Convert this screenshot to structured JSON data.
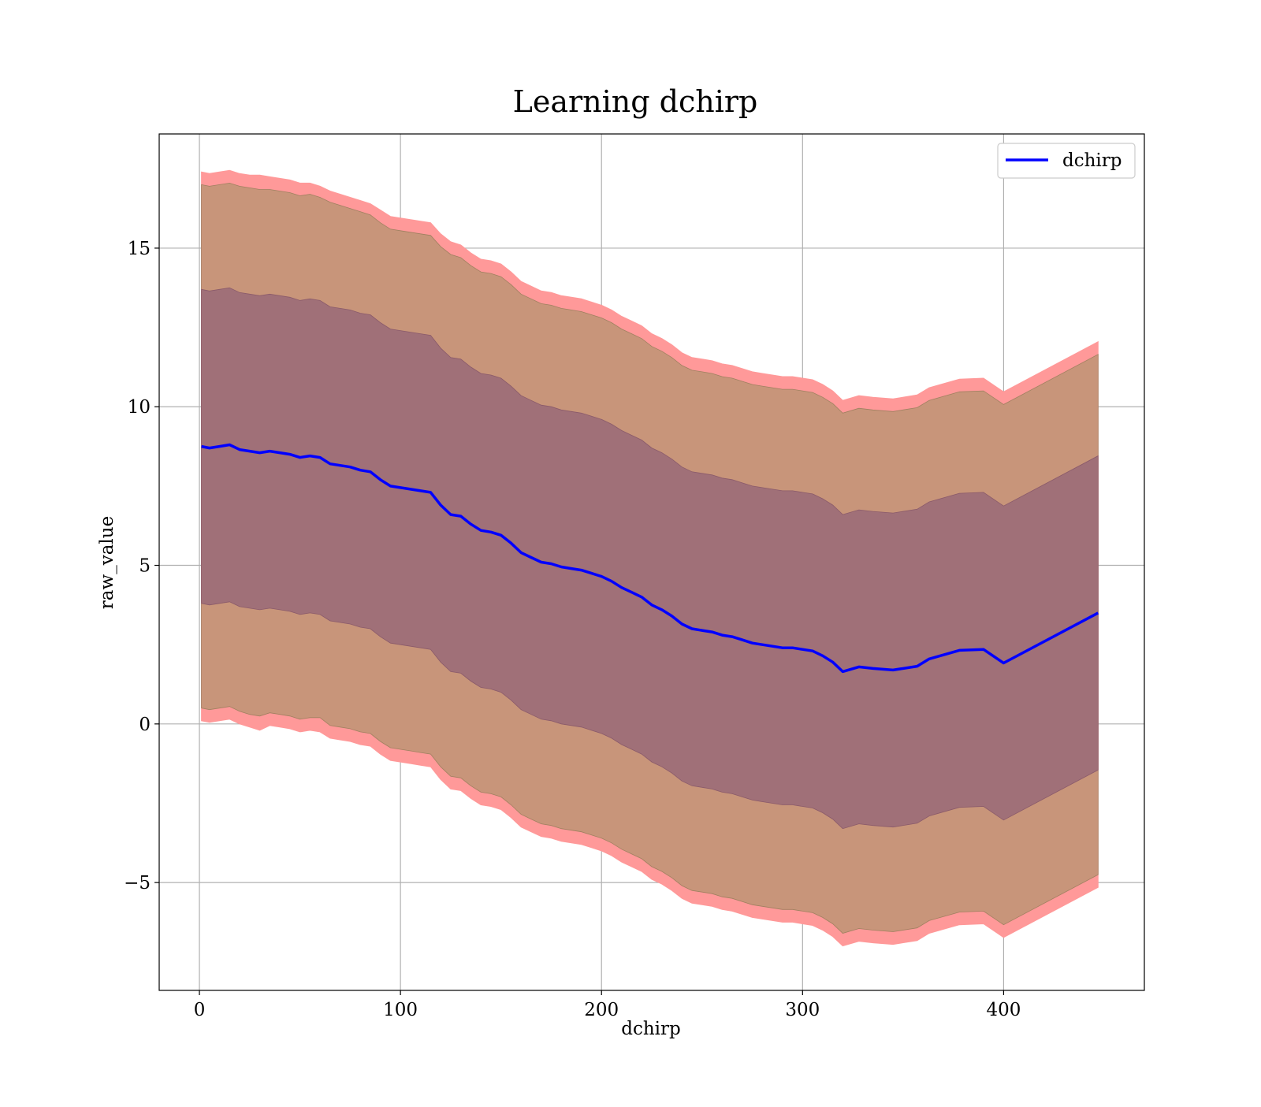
{
  "chart_data": {
    "type": "line",
    "title": "Learning dchirp",
    "xlabel": "dchirp",
    "ylabel": "raw_value",
    "xlim": [
      -20,
      470
    ],
    "ylim": [
      -8.4,
      18.6
    ],
    "xticks": [
      0,
      100,
      200,
      300,
      400
    ],
    "yticks": [
      -5,
      0,
      5,
      10,
      15
    ],
    "xtick_labels": [
      "0",
      "100",
      "200",
      "300",
      "400"
    ],
    "ytick_labels": [
      "−5",
      "0",
      "5",
      "10",
      "15"
    ],
    "grid": true,
    "legend": {
      "placement": "top-right",
      "entries": [
        "dchirp"
      ]
    },
    "colors": {
      "line": "#0000ff",
      "outer_band": "#ff9999",
      "middle_band": "#c8957a",
      "inner_band": "#a07078"
    },
    "series": [
      {
        "name": "dchirp",
        "x": [
          1,
          5,
          10,
          15,
          20,
          25,
          30,
          35,
          40,
          45,
          50,
          55,
          60,
          65,
          70,
          75,
          80,
          85,
          90,
          95,
          100,
          105,
          110,
          115,
          120,
          125,
          130,
          135,
          140,
          145,
          150,
          155,
          160,
          165,
          170,
          175,
          180,
          185,
          190,
          195,
          200,
          205,
          210,
          215,
          220,
          225,
          230,
          235,
          240,
          245,
          250,
          255,
          260,
          265,
          270,
          275,
          280,
          285,
          290,
          295,
          300,
          305,
          310,
          315,
          320,
          328,
          335,
          345,
          357,
          363,
          378,
          390,
          400,
          447
        ],
        "y": [
          8.75,
          8.7,
          8.75,
          8.8,
          8.65,
          8.6,
          8.55,
          8.6,
          8.55,
          8.5,
          8.4,
          8.45,
          8.4,
          8.2,
          8.15,
          8.1,
          8.0,
          7.95,
          7.7,
          7.5,
          7.45,
          7.4,
          7.35,
          7.3,
          6.9,
          6.6,
          6.55,
          6.3,
          6.1,
          6.05,
          5.95,
          5.7,
          5.4,
          5.25,
          5.1,
          5.05,
          4.95,
          4.9,
          4.85,
          4.75,
          4.65,
          4.5,
          4.3,
          4.15,
          4.0,
          3.75,
          3.6,
          3.4,
          3.15,
          3.0,
          2.95,
          2.9,
          2.8,
          2.75,
          2.65,
          2.55,
          2.5,
          2.45,
          2.4,
          2.4,
          2.35,
          2.3,
          2.15,
          1.95,
          1.65,
          1.8,
          1.75,
          1.7,
          1.82,
          2.05,
          2.32,
          2.35,
          1.92,
          3.5
        ],
        "outer_upper": [
          17.4,
          17.35,
          17.4,
          17.45,
          17.35,
          17.3,
          17.3,
          17.25,
          17.2,
          17.15,
          17.05,
          17.05,
          16.95,
          16.8,
          16.7,
          16.6,
          16.5,
          16.4,
          16.2,
          16.0,
          15.95,
          15.9,
          15.85,
          15.8,
          15.45,
          15.2,
          15.1,
          14.85,
          14.65,
          14.6,
          14.5,
          14.25,
          13.95,
          13.8,
          13.65,
          13.6,
          13.5,
          13.45,
          13.4,
          13.3,
          13.2,
          13.05,
          12.85,
          12.7,
          12.55,
          12.3,
          12.15,
          11.95,
          11.7,
          11.55,
          11.5,
          11.45,
          11.35,
          11.3,
          11.2,
          11.1,
          11.05,
          11.0,
          10.95,
          10.95,
          10.9,
          10.85,
          10.7,
          10.5,
          10.2,
          10.35,
          10.3,
          10.25,
          10.37,
          10.6,
          10.87,
          10.9,
          10.47,
          12.05
        ],
        "outer_lower": [
          0.1,
          0.05,
          0.1,
          0.15,
          0.0,
          -0.1,
          -0.2,
          -0.05,
          -0.1,
          -0.15,
          -0.25,
          -0.2,
          -0.25,
          -0.45,
          -0.5,
          -0.55,
          -0.65,
          -0.7,
          -0.95,
          -1.15,
          -1.2,
          -1.25,
          -1.3,
          -1.35,
          -1.75,
          -2.05,
          -2.1,
          -2.35,
          -2.55,
          -2.6,
          -2.7,
          -2.95,
          -3.25,
          -3.4,
          -3.55,
          -3.6,
          -3.7,
          -3.75,
          -3.8,
          -3.9,
          -4.0,
          -4.15,
          -4.35,
          -4.5,
          -4.65,
          -4.9,
          -5.05,
          -5.25,
          -5.5,
          -5.65,
          -5.7,
          -5.75,
          -5.85,
          -5.9,
          -6.0,
          -6.1,
          -6.15,
          -6.2,
          -6.25,
          -6.25,
          -6.3,
          -6.35,
          -6.5,
          -6.7,
          -7.0,
          -6.85,
          -6.9,
          -6.95,
          -6.83,
          -6.6,
          -6.33,
          -6.3,
          -6.73,
          -5.15
        ],
        "middle_upper": [
          17.0,
          16.95,
          17.0,
          17.05,
          16.95,
          16.9,
          16.85,
          16.85,
          16.8,
          16.75,
          16.65,
          16.7,
          16.6,
          16.45,
          16.35,
          16.25,
          16.15,
          16.05,
          15.8,
          15.6,
          15.55,
          15.5,
          15.45,
          15.4,
          15.05,
          14.8,
          14.7,
          14.45,
          14.25,
          14.2,
          14.1,
          13.85,
          13.55,
          13.4,
          13.25,
          13.2,
          13.1,
          13.05,
          13.0,
          12.9,
          12.8,
          12.65,
          12.45,
          12.3,
          12.15,
          11.9,
          11.75,
          11.55,
          11.3,
          11.15,
          11.1,
          11.05,
          10.95,
          10.9,
          10.8,
          10.7,
          10.65,
          10.6,
          10.55,
          10.55,
          10.5,
          10.45,
          10.3,
          10.1,
          9.8,
          9.95,
          9.9,
          9.85,
          9.97,
          10.2,
          10.47,
          10.5,
          10.07,
          11.65
        ],
        "middle_lower": [
          0.5,
          0.45,
          0.5,
          0.55,
          0.4,
          0.3,
          0.25,
          0.35,
          0.3,
          0.25,
          0.15,
          0.2,
          0.2,
          -0.05,
          -0.1,
          -0.15,
          -0.25,
          -0.3,
          -0.55,
          -0.75,
          -0.8,
          -0.85,
          -0.9,
          -0.95,
          -1.35,
          -1.65,
          -1.7,
          -1.95,
          -2.15,
          -2.2,
          -2.3,
          -2.55,
          -2.85,
          -3.0,
          -3.15,
          -3.2,
          -3.3,
          -3.35,
          -3.4,
          -3.5,
          -3.6,
          -3.75,
          -3.95,
          -4.1,
          -4.25,
          -4.5,
          -4.65,
          -4.85,
          -5.1,
          -5.25,
          -5.3,
          -5.35,
          -5.45,
          -5.5,
          -5.6,
          -5.7,
          -5.75,
          -5.8,
          -5.85,
          -5.85,
          -5.9,
          -5.95,
          -6.1,
          -6.3,
          -6.6,
          -6.45,
          -6.5,
          -6.55,
          -6.43,
          -6.2,
          -5.93,
          -5.9,
          -6.33,
          -4.75
        ],
        "inner_upper": [
          13.7,
          13.65,
          13.7,
          13.75,
          13.6,
          13.55,
          13.5,
          13.55,
          13.5,
          13.45,
          13.35,
          13.4,
          13.35,
          13.15,
          13.1,
          13.05,
          12.95,
          12.9,
          12.65,
          12.45,
          12.4,
          12.35,
          12.3,
          12.25,
          11.85,
          11.55,
          11.5,
          11.25,
          11.05,
          11.0,
          10.9,
          10.65,
          10.35,
          10.2,
          10.05,
          10.0,
          9.9,
          9.85,
          9.8,
          9.7,
          9.6,
          9.45,
          9.25,
          9.1,
          8.95,
          8.7,
          8.55,
          8.35,
          8.1,
          7.95,
          7.9,
          7.85,
          7.75,
          7.7,
          7.6,
          7.5,
          7.45,
          7.4,
          7.35,
          7.35,
          7.3,
          7.25,
          7.1,
          6.9,
          6.6,
          6.75,
          6.7,
          6.65,
          6.77,
          7.0,
          7.27,
          7.3,
          6.87,
          8.45
        ],
        "inner_lower": [
          3.8,
          3.75,
          3.8,
          3.85,
          3.7,
          3.65,
          3.6,
          3.65,
          3.6,
          3.55,
          3.45,
          3.5,
          3.45,
          3.25,
          3.2,
          3.15,
          3.05,
          3.0,
          2.75,
          2.55,
          2.5,
          2.45,
          2.4,
          2.35,
          1.95,
          1.65,
          1.6,
          1.35,
          1.15,
          1.1,
          1.0,
          0.75,
          0.45,
          0.3,
          0.15,
          0.1,
          0.0,
          -0.05,
          -0.1,
          -0.2,
          -0.3,
          -0.45,
          -0.65,
          -0.8,
          -0.95,
          -1.2,
          -1.35,
          -1.55,
          -1.8,
          -1.95,
          -2.0,
          -2.05,
          -2.15,
          -2.2,
          -2.3,
          -2.4,
          -2.45,
          -2.5,
          -2.55,
          -2.55,
          -2.6,
          -2.65,
          -2.8,
          -3.0,
          -3.3,
          -3.15,
          -3.2,
          -3.25,
          -3.13,
          -2.9,
          -2.63,
          -2.6,
          -3.03,
          -1.45
        ]
      }
    ]
  }
}
